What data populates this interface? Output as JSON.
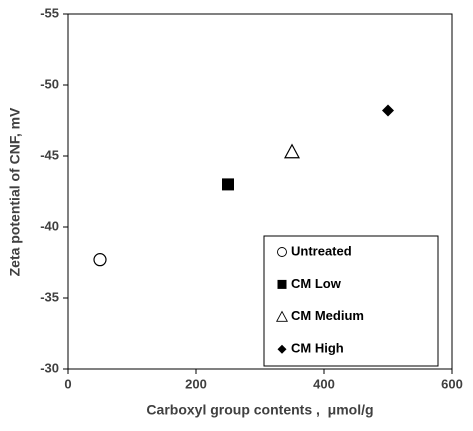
{
  "chart_data": {
    "type": "scatter",
    "x_label": "Carboxyl group contents ,  μmol/g",
    "y_label": "Zeta potential of CNF, mV",
    "xlim": [
      0,
      600
    ],
    "xticks": [
      0,
      200,
      400,
      600
    ],
    "ylim": [
      -30,
      -55
    ],
    "yticks": [
      -30,
      -35,
      -40,
      -45,
      -50,
      -55
    ],
    "grid": false,
    "legend": "lower right",
    "series": [
      {
        "name": "Untreated",
        "color": "#000000",
        "marker": "circle-open",
        "x": [
          50
        ],
        "values": [
          -37.7
        ]
      },
      {
        "name": "CM Low",
        "color": "#000000",
        "marker": "square",
        "x": [
          250
        ],
        "values": [
          -43.0
        ]
      },
      {
        "name": "CM Medium",
        "color": "#000000",
        "marker": "triangle-open",
        "x": [
          350
        ],
        "values": [
          -45.3
        ]
      },
      {
        "name": "CM High",
        "color": "#000000",
        "marker": "diamond",
        "x": [
          500
        ],
        "values": [
          -48.2
        ]
      }
    ]
  }
}
